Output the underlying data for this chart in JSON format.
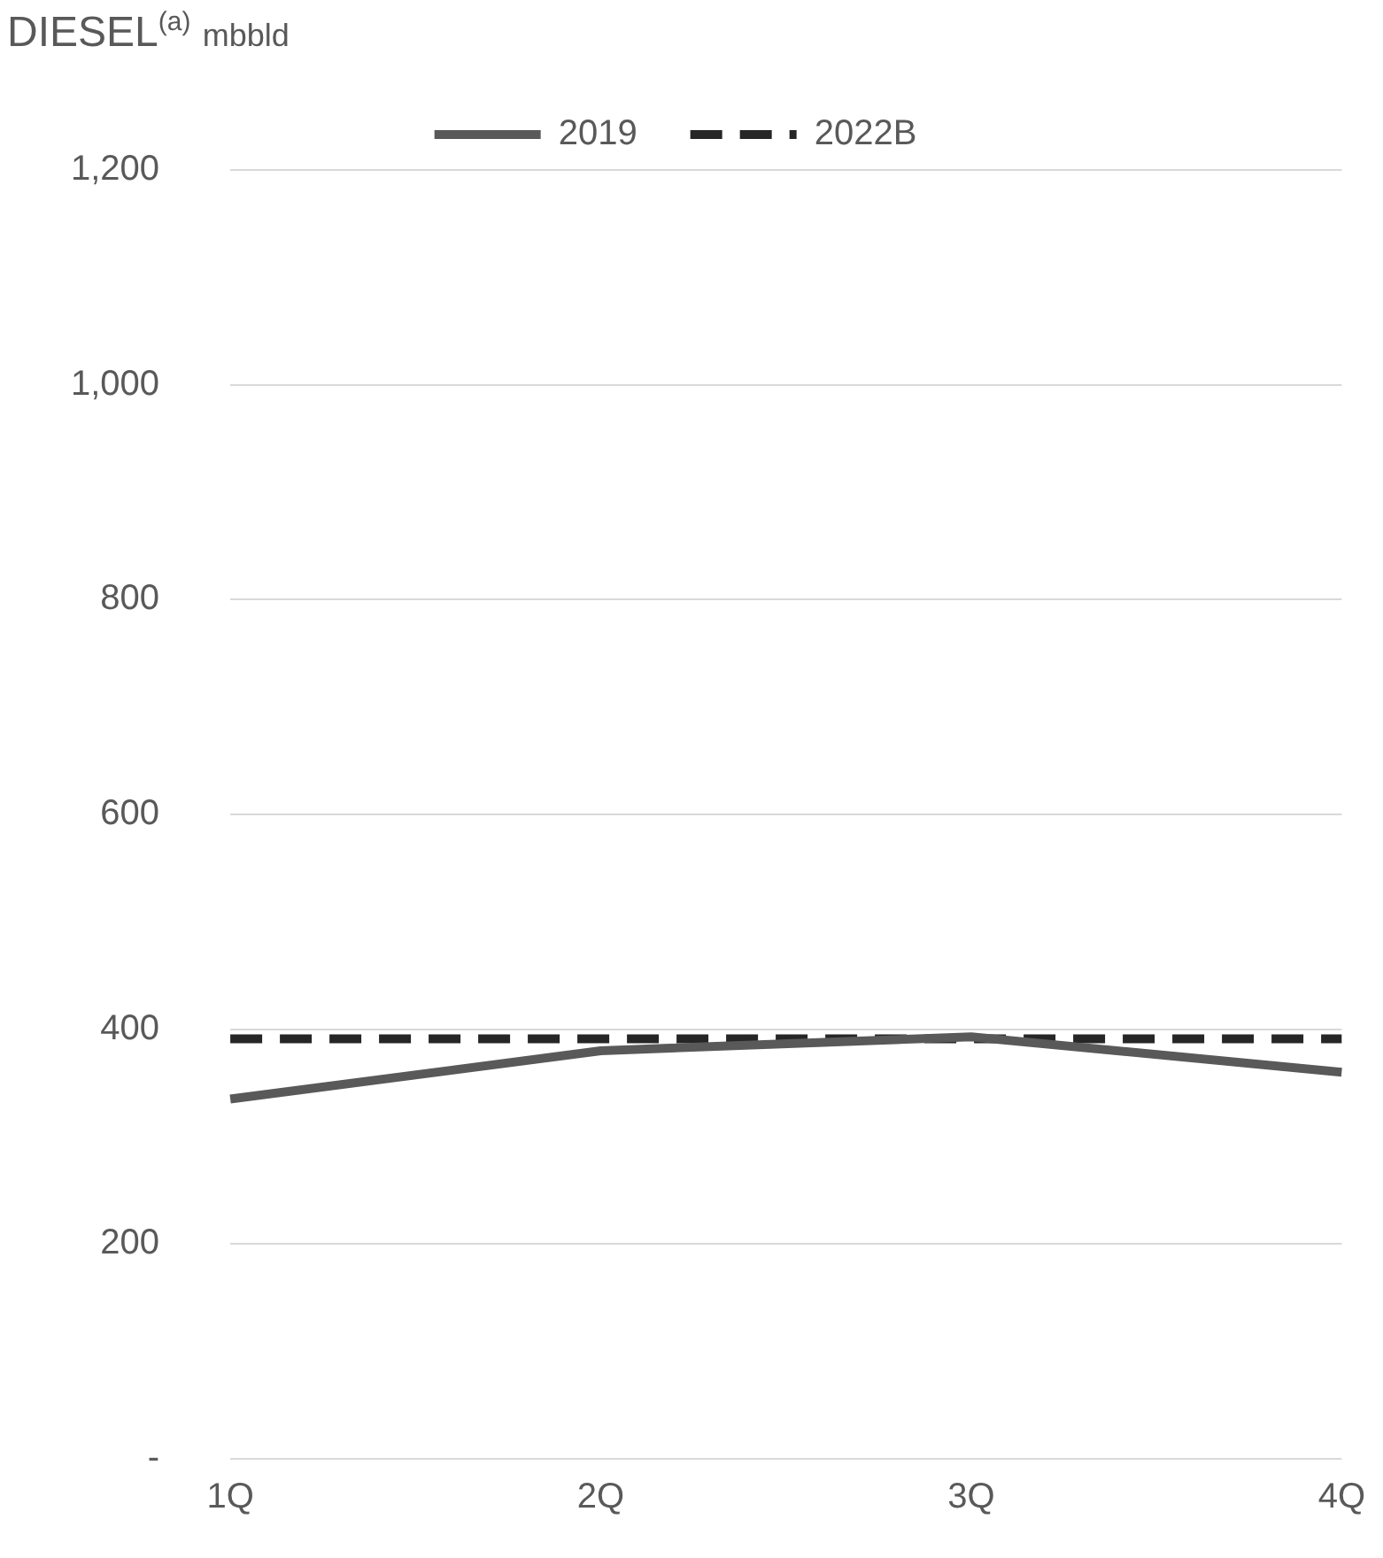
{
  "chart_data": {
    "type": "line",
    "title": "DIESEL$^{(a)}$ mbbld",
    "categories": [
      "1Q",
      "2Q",
      "3Q",
      "4Q"
    ],
    "series": [
      {
        "name": "2019",
        "color": "#595959",
        "values": [
          335,
          380,
          393,
          360
        ],
        "line_style": "solid"
      },
      {
        "name": "2022B",
        "color": "#262626",
        "values": [
          391,
          391,
          391,
          391
        ],
        "line_style": "dashed"
      }
    ],
    "ylim": [
      0,
      1200
    ],
    "yticks": [
      {
        "value": 0,
        "label": "-"
      },
      200,
      400,
      600,
      800,
      {
        "value": 1000,
        "label": "1,000"
      },
      {
        "value": 1200,
        "label": "1,200"
      }
    ],
    "grid": "y",
    "legend": "top",
    "marker": "none"
  }
}
